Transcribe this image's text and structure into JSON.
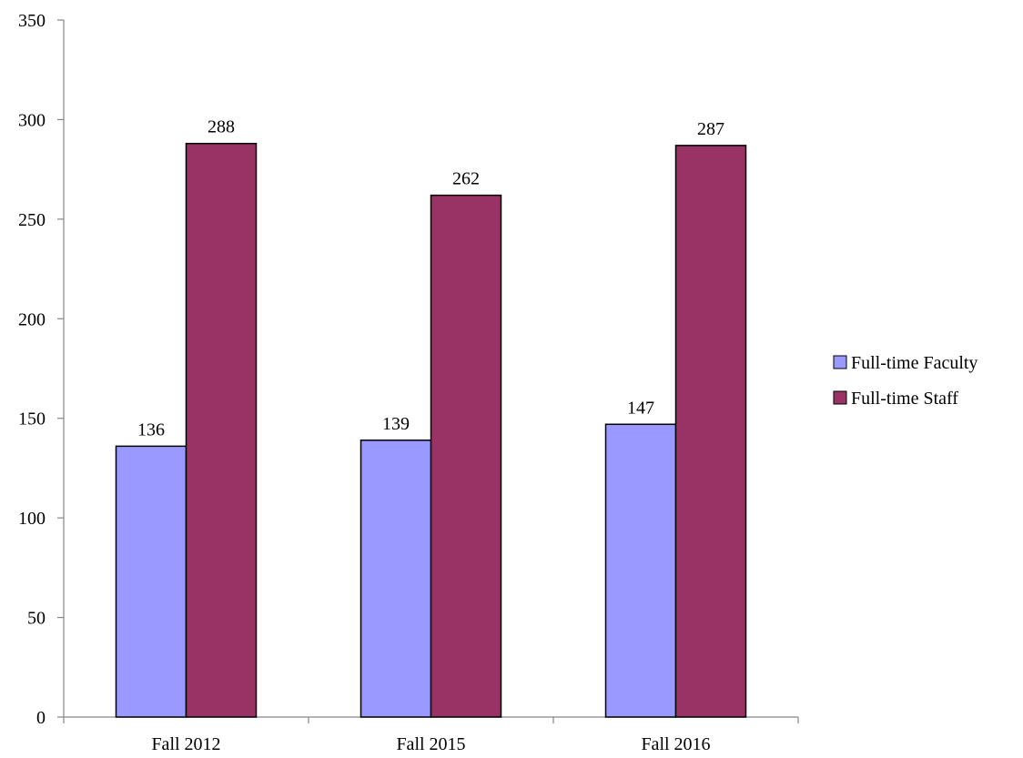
{
  "chart_data": {
    "type": "bar",
    "categories": [
      "Fall 2012",
      "Fall 2015",
      "Fall 2016"
    ],
    "series": [
      {
        "name": "Full-time Faculty",
        "values": [
          136,
          139,
          147
        ],
        "color": "#9999FF"
      },
      {
        "name": "Full-time Staff",
        "values": [
          288,
          262,
          287
        ],
        "color": "#993366"
      }
    ],
    "title": "",
    "xlabel": "",
    "ylabel": "",
    "ylim": [
      0,
      350
    ],
    "yticks": [
      0,
      50,
      100,
      150,
      200,
      250,
      300,
      350
    ],
    "grid": false,
    "legend_position": "right",
    "data_labels": true
  }
}
